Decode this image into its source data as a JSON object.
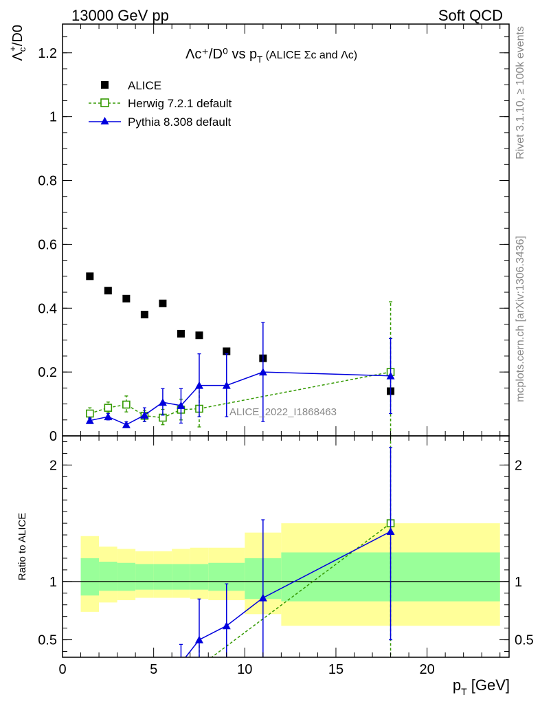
{
  "header": {
    "left": "13000 GeV pp",
    "right": "Soft QCD"
  },
  "side_labels": {
    "rivet": "Rivet 3.1.10, ≥ 100k events",
    "mcplots": "mcplots.cern.ch [arXiv:1306.3436]"
  },
  "colors": {
    "alice": "#000000",
    "herwig": "#339900",
    "pythia": "#0000dd",
    "band_inner": "#99ff99",
    "band_outer": "#ffff99"
  },
  "chart_data": [
    {
      "type": "scatter",
      "title": {
        "main": "Λc⁺/D⁰ vs p",
        "sub": "T",
        "tail": " (ALICE Σc and Λc)"
      },
      "ylabel": {
        "base": "Λ",
        "sub": "c",
        "sup": "+",
        "tail": "/D0"
      },
      "xlim": [
        0,
        24.5
      ],
      "ylim": [
        0,
        1.29
      ],
      "yticks": [
        {
          "v": 0,
          "label": "0"
        },
        {
          "v": 0.2,
          "label": "0.2"
        },
        {
          "v": 0.4,
          "label": "0.4"
        },
        {
          "v": 0.6,
          "label": "0.6"
        },
        {
          "v": 0.8,
          "label": "0.8"
        },
        {
          "v": 1.0,
          "label": "1"
        },
        {
          "v": 1.2,
          "label": "1.2"
        }
      ],
      "watermark": "ALICE_2022_I1868463",
      "legend": [
        {
          "key": "alice",
          "label": "ALICE"
        },
        {
          "key": "herwig",
          "label": "Herwig 7.2.1 default"
        },
        {
          "key": "pythia",
          "label": "Pythia 8.308 default"
        }
      ],
      "series": [
        {
          "key": "alice",
          "name": "ALICE",
          "marker": "square-filled",
          "points": [
            {
              "x": 1.5,
              "y": 0.5
            },
            {
              "x": 2.5,
              "y": 0.455
            },
            {
              "x": 3.5,
              "y": 0.43
            },
            {
              "x": 4.5,
              "y": 0.38
            },
            {
              "x": 5.5,
              "y": 0.415
            },
            {
              "x": 6.5,
              "y": 0.32
            },
            {
              "x": 7.5,
              "y": 0.315
            },
            {
              "x": 9.0,
              "y": 0.265
            },
            {
              "x": 11.0,
              "y": 0.243
            },
            {
              "x": 18.0,
              "y": 0.14
            }
          ]
        },
        {
          "key": "herwig",
          "name": "Herwig 7.2.1 default",
          "marker": "square-open",
          "line": "dashed",
          "points": [
            {
              "x": 1.5,
              "y": 0.07,
              "ylo": 0.055,
              "yhi": 0.088
            },
            {
              "x": 2.5,
              "y": 0.088,
              "ylo": 0.072,
              "yhi": 0.106
            },
            {
              "x": 3.5,
              "y": 0.098,
              "ylo": 0.075,
              "yhi": 0.125
            },
            {
              "x": 4.5,
              "y": 0.063,
              "ylo": 0.045,
              "yhi": 0.08
            },
            {
              "x": 5.5,
              "y": 0.057,
              "ylo": 0.035,
              "yhi": 0.083
            },
            {
              "x": 6.5,
              "y": 0.082,
              "ylo": 0.05,
              "yhi": 0.115
            },
            {
              "x": 7.5,
              "y": 0.085,
              "ylo": 0.028,
              "yhi": 0.15
            },
            {
              "x": 18.0,
              "y": 0.2,
              "ylo": -0.03,
              "yhi": 0.42
            }
          ]
        },
        {
          "key": "pythia",
          "name": "Pythia 8.308 default",
          "marker": "triangle-filled",
          "line": "solid",
          "points": [
            {
              "x": 1.5,
              "y": 0.048,
              "ylo": 0.04,
              "yhi": 0.056
            },
            {
              "x": 2.5,
              "y": 0.06,
              "ylo": 0.05,
              "yhi": 0.07
            },
            {
              "x": 3.5,
              "y": 0.035,
              "ylo": 0.026,
              "yhi": 0.044
            },
            {
              "x": 4.5,
              "y": 0.065,
              "ylo": 0.045,
              "yhi": 0.088
            },
            {
              "x": 5.5,
              "y": 0.105,
              "ylo": 0.065,
              "yhi": 0.148
            },
            {
              "x": 6.5,
              "y": 0.095,
              "ylo": 0.04,
              "yhi": 0.148
            },
            {
              "x": 7.5,
              "y": 0.158,
              "ylo": 0.06,
              "yhi": 0.257
            },
            {
              "x": 9.0,
              "y": 0.158,
              "ylo": 0.06,
              "yhi": 0.257
            },
            {
              "x": 11.0,
              "y": 0.2,
              "ylo": 0.045,
              "yhi": 0.355
            },
            {
              "x": 18.0,
              "y": 0.188,
              "ylo": 0.07,
              "yhi": 0.305
            }
          ]
        }
      ]
    },
    {
      "type": "scatter",
      "ylabel": "Ratio to ALICE",
      "xlabel": {
        "base": "p",
        "sub": "T",
        "tail": " [GeV]"
      },
      "xlim": [
        0,
        24.5
      ],
      "ylim": [
        0.35,
        2.25
      ],
      "xticks": [
        {
          "v": 0,
          "label": "0"
        },
        {
          "v": 5,
          "label": "5"
        },
        {
          "v": 10,
          "label": "10"
        },
        {
          "v": 15,
          "label": "15"
        },
        {
          "v": 20,
          "label": "20"
        }
      ],
      "yticks": [
        {
          "v": 0.5,
          "label": "0.5"
        },
        {
          "v": 1,
          "label": "1"
        },
        {
          "v": 2,
          "label": "2"
        }
      ],
      "bands": [
        {
          "x0": 1,
          "x1": 2,
          "inner": [
            0.88,
            1.2
          ],
          "outer": [
            0.74,
            1.39
          ]
        },
        {
          "x0": 2,
          "x1": 3,
          "inner": [
            0.92,
            1.17
          ],
          "outer": [
            0.82,
            1.3
          ]
        },
        {
          "x0": 3,
          "x1": 4,
          "inner": [
            0.92,
            1.16
          ],
          "outer": [
            0.84,
            1.28
          ]
        },
        {
          "x0": 4,
          "x1": 5,
          "inner": [
            0.93,
            1.15
          ],
          "outer": [
            0.86,
            1.26
          ]
        },
        {
          "x0": 5,
          "x1": 6,
          "inner": [
            0.93,
            1.15
          ],
          "outer": [
            0.86,
            1.26
          ]
        },
        {
          "x0": 6,
          "x1": 7,
          "inner": [
            0.93,
            1.15
          ],
          "outer": [
            0.86,
            1.28
          ]
        },
        {
          "x0": 7,
          "x1": 8,
          "inner": [
            0.93,
            1.15
          ],
          "outer": [
            0.85,
            1.29
          ]
        },
        {
          "x0": 8,
          "x1": 10,
          "inner": [
            0.92,
            1.16
          ],
          "outer": [
            0.84,
            1.29
          ]
        },
        {
          "x0": 10,
          "x1": 12,
          "inner": [
            0.85,
            1.2
          ],
          "outer": [
            0.72,
            1.42
          ]
        },
        {
          "x0": 12,
          "x1": 24,
          "inner": [
            0.83,
            1.25
          ],
          "outer": [
            0.62,
            1.5
          ]
        }
      ],
      "series": [
        {
          "key": "herwig",
          "name": "Herwig 7.2.1 default",
          "marker": "square-open",
          "line": "dashed",
          "points": [
            {
              "x": 7.5,
              "y": 0.27,
              "ylo": 0.1,
              "yhi": 0.48
            },
            {
              "x": 18.0,
              "y": 1.5,
              "ylo": 0.2,
              "yhi": 3.0
            }
          ]
        },
        {
          "key": "pythia",
          "name": "Pythia 8.308 default",
          "marker": "triangle-filled",
          "line": "solid",
          "points": [
            {
              "x": 6.5,
              "y": 0.3,
              "ylo": 0.12,
              "yhi": 0.46
            },
            {
              "x": 7.5,
              "y": 0.5,
              "ylo": 0.19,
              "yhi": 0.85
            },
            {
              "x": 9.0,
              "y": 0.62,
              "ylo": 0.23,
              "yhi": 0.98
            },
            {
              "x": 11.0,
              "y": 0.86,
              "ylo": 0.19,
              "yhi": 1.53
            },
            {
              "x": 18.0,
              "y": 1.43,
              "ylo": 0.5,
              "yhi": 2.15
            }
          ]
        }
      ]
    }
  ]
}
